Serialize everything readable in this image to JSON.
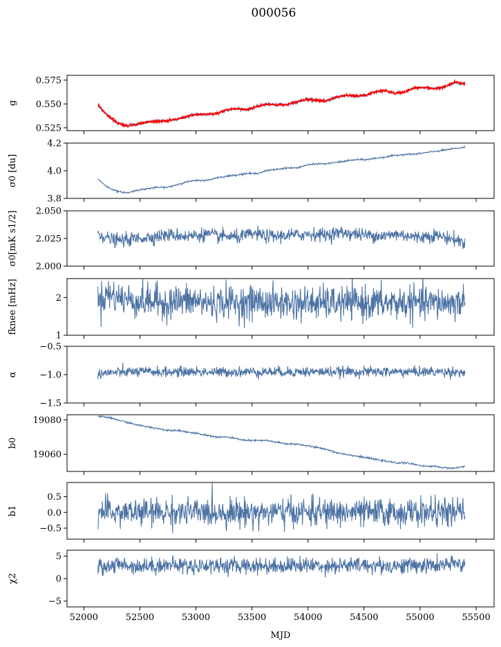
{
  "figure": {
    "title": "000056"
  },
  "colors": {
    "series": "#4c72a4",
    "fit": "#ff0000"
  },
  "chart_data": [
    {
      "type": "line",
      "ylabel": "g",
      "ylim": [
        0.522,
        0.58
      ],
      "yticks": [
        0.525,
        0.55,
        0.575
      ],
      "ytick_labels": [
        "0.525",
        "0.550",
        "0.575"
      ],
      "xlim": [
        51850,
        55660
      ],
      "x_start": 52125,
      "x_end": 55400,
      "series": [
        {
          "values": [
            0.548,
            0.538,
            0.53,
            0.527,
            0.529,
            0.531,
            0.532,
            0.532,
            0.534,
            0.537,
            0.539,
            0.539,
            0.54,
            0.544,
            0.545,
            0.544,
            0.547,
            0.55,
            0.549,
            0.549,
            0.552,
            0.555,
            0.554,
            0.553,
            0.557,
            0.559,
            0.558,
            0.559,
            0.563,
            0.564,
            0.561,
            0.563,
            0.567,
            0.567,
            0.566,
            0.568,
            0.572,
            0.572
          ],
          "noise": 0.0008,
          "color_key": "series"
        },
        {
          "values": [
            0.549,
            0.538,
            0.53,
            0.527,
            0.529,
            0.531,
            0.532,
            0.532,
            0.534,
            0.537,
            0.539,
            0.539,
            0.54,
            0.544,
            0.545,
            0.544,
            0.547,
            0.55,
            0.549,
            0.549,
            0.552,
            0.555,
            0.554,
            0.553,
            0.557,
            0.559,
            0.558,
            0.559,
            0.563,
            0.564,
            0.561,
            0.563,
            0.567,
            0.567,
            0.566,
            0.568,
            0.573,
            0.571
          ],
          "noise": 0.0006,
          "color_key": "fit"
        }
      ]
    },
    {
      "type": "line",
      "ylabel": "σ0 [du]",
      "ylim": [
        3.8,
        4.2
      ],
      "yticks": [
        3.8,
        4.0,
        4.2
      ],
      "ytick_labels": [
        "3.8",
        "4.0",
        "4.2"
      ],
      "xlim": [
        51850,
        55660
      ],
      "x_start": 52125,
      "x_end": 55400,
      "series": [
        {
          "values": [
            3.94,
            3.88,
            3.85,
            3.84,
            3.86,
            3.87,
            3.88,
            3.88,
            3.9,
            3.92,
            3.93,
            3.93,
            3.95,
            3.96,
            3.97,
            3.98,
            3.98,
            4.0,
            4.01,
            4.02,
            4.02,
            4.04,
            4.05,
            4.05,
            4.06,
            4.07,
            4.08,
            4.08,
            4.09,
            4.1,
            4.11,
            4.12,
            4.12,
            4.13,
            4.14,
            4.15,
            4.16,
            4.17
          ],
          "noise": 0.003,
          "color_key": "series"
        }
      ]
    },
    {
      "type": "line",
      "ylabel": "σ0[mK s1/2]",
      "ylim": [
        2.0,
        2.05
      ],
      "yticks": [
        2.0,
        2.025,
        2.05
      ],
      "ytick_labels": [
        "2.000",
        "2.025",
        "2.050"
      ],
      "xlim": [
        51850,
        55660
      ],
      "x_start": 52125,
      "x_end": 55400,
      "series": [
        {
          "values": [
            2.03,
            2.025,
            2.023,
            2.024,
            2.025,
            2.026,
            2.027,
            2.028,
            2.028,
            2.027,
            2.028,
            2.029,
            2.027,
            2.027,
            2.026,
            2.028,
            2.029,
            2.027,
            2.027,
            2.028,
            2.028,
            2.029,
            2.029,
            2.028,
            2.03,
            2.03,
            2.029,
            2.028,
            2.028,
            2.027,
            2.029,
            2.028,
            2.026,
            2.027,
            2.028,
            2.026,
            2.024,
            2.021
          ],
          "noise": 0.003,
          "color_key": "series"
        }
      ]
    },
    {
      "type": "line",
      "ylabel": "fknee [mHz]",
      "ylim": [
        1.0,
        2.5
      ],
      "yticks": [
        1,
        2
      ],
      "ytick_labels": [
        "1",
        "2"
      ],
      "xlim": [
        51850,
        55660
      ],
      "x_start": 52125,
      "x_end": 55400,
      "series": [
        {
          "values": [
            1.9,
            2.1,
            2.0,
            1.95,
            1.9,
            1.9,
            1.9,
            1.85,
            1.9,
            1.9,
            1.9,
            1.85,
            1.85,
            1.9,
            1.85,
            1.85,
            1.9,
            1.85,
            1.85,
            1.85,
            1.85,
            1.85,
            1.85,
            1.85,
            1.85,
            1.85,
            1.85,
            1.85,
            1.85,
            1.85,
            1.85,
            1.85,
            1.85,
            1.85,
            1.85,
            1.85,
            1.85,
            1.9
          ],
          "noise": 0.22,
          "color_key": "series"
        }
      ]
    },
    {
      "type": "line",
      "ylabel": "α",
      "ylim": [
        -1.5,
        -0.5
      ],
      "yticks": [
        -1.5,
        -1.0,
        -0.5
      ],
      "ytick_labels": [
        "−1.5",
        "−1.0",
        "−0.5"
      ],
      "xlim": [
        51850,
        55660
      ],
      "x_start": 52125,
      "x_end": 55400,
      "series": [
        {
          "values": [
            -0.98,
            -0.97,
            -0.96,
            -0.95,
            -0.95,
            -0.95,
            -0.95,
            -0.96,
            -0.95,
            -0.95,
            -0.95,
            -0.95,
            -0.96,
            -0.95,
            -0.95,
            -0.95,
            -0.95,
            -0.95,
            -0.95,
            -0.95,
            -0.95,
            -0.95,
            -0.95,
            -0.95,
            -0.95,
            -0.95,
            -0.95,
            -0.95,
            -0.95,
            -0.95,
            -0.95,
            -0.95,
            -0.95,
            -0.95,
            -0.95,
            -0.95,
            -0.95,
            -0.96
          ],
          "noise": 0.045,
          "color_key": "series"
        }
      ]
    },
    {
      "type": "line",
      "ylabel": "b0",
      "ylim": [
        19050,
        19083
      ],
      "yticks": [
        19060,
        19080
      ],
      "ytick_labels": [
        "19060",
        "19080"
      ],
      "xlim": [
        51850,
        55660
      ],
      "x_start": 52125,
      "x_end": 55400,
      "series": [
        {
          "values": [
            19082,
            19081.5,
            19080,
            19078.5,
            19077,
            19076,
            19075,
            19074,
            19074,
            19073,
            19072,
            19071,
            19070,
            19070,
            19069,
            19068,
            19068,
            19068,
            19067,
            19066,
            19066,
            19065,
            19064,
            19063,
            19061,
            19060,
            19059,
            19058,
            19057,
            19056,
            19055,
            19055,
            19054,
            19053,
            19053,
            19052,
            19052,
            19053
          ],
          "noise": 0.25,
          "color_key": "series"
        }
      ]
    },
    {
      "type": "line",
      "ylabel": "b1",
      "ylim": [
        -0.85,
        0.95
      ],
      "yticks": [
        -0.5,
        0.0,
        0.5
      ],
      "ytick_labels": [
        "−0.5",
        "0.0",
        "0.5"
      ],
      "xlim": [
        51850,
        55660
      ],
      "x_start": 52125,
      "x_end": 55400,
      "series": [
        {
          "values": [
            0.0,
            0.0,
            0.0,
            0.0,
            0.0,
            0.0,
            0.0,
            0.0,
            0.0,
            0.0,
            0.0,
            0.0,
            0.0,
            0.0,
            0.0,
            0.0,
            0.0,
            0.0,
            0.0,
            0.0,
            0.0,
            0.0,
            0.0,
            0.0,
            0.0,
            0.0,
            0.0,
            0.0,
            0.0,
            0.0,
            0.0,
            0.0,
            0.0,
            0.0,
            0.0,
            0.0,
            0.0,
            0.0
          ],
          "noise": 0.22,
          "color_key": "series"
        }
      ]
    },
    {
      "type": "line",
      "ylabel": "χ2",
      "ylim": [
        -6.3,
        6.3
      ],
      "yticks": [
        -5,
        0,
        5
      ],
      "ytick_labels": [
        "−5",
        "0",
        "5"
      ],
      "xlim": [
        51850,
        55660
      ],
      "x_start": 52125,
      "x_end": 55400,
      "xticks": [
        52000,
        52500,
        53000,
        53500,
        54000,
        54500,
        55000,
        55500
      ],
      "xtick_labels": [
        "52000",
        "52500",
        "53000",
        "53500",
        "54000",
        "54500",
        "55000",
        "55500"
      ],
      "xlabel": "MJD",
      "series": [
        {
          "values": [
            2.5,
            2.8,
            3.0,
            3.0,
            2.8,
            2.8,
            2.9,
            3.0,
            3.0,
            2.8,
            2.8,
            2.9,
            3.0,
            2.8,
            2.8,
            2.9,
            2.9,
            2.8,
            2.8,
            2.9,
            3.0,
            2.9,
            2.9,
            2.9,
            2.9,
            2.9,
            2.9,
            3.0,
            2.9,
            2.8,
            2.8,
            2.9,
            3.0,
            2.9,
            2.9,
            3.0,
            3.2,
            3.4
          ],
          "noise": 0.9,
          "color_key": "series"
        }
      ]
    }
  ]
}
